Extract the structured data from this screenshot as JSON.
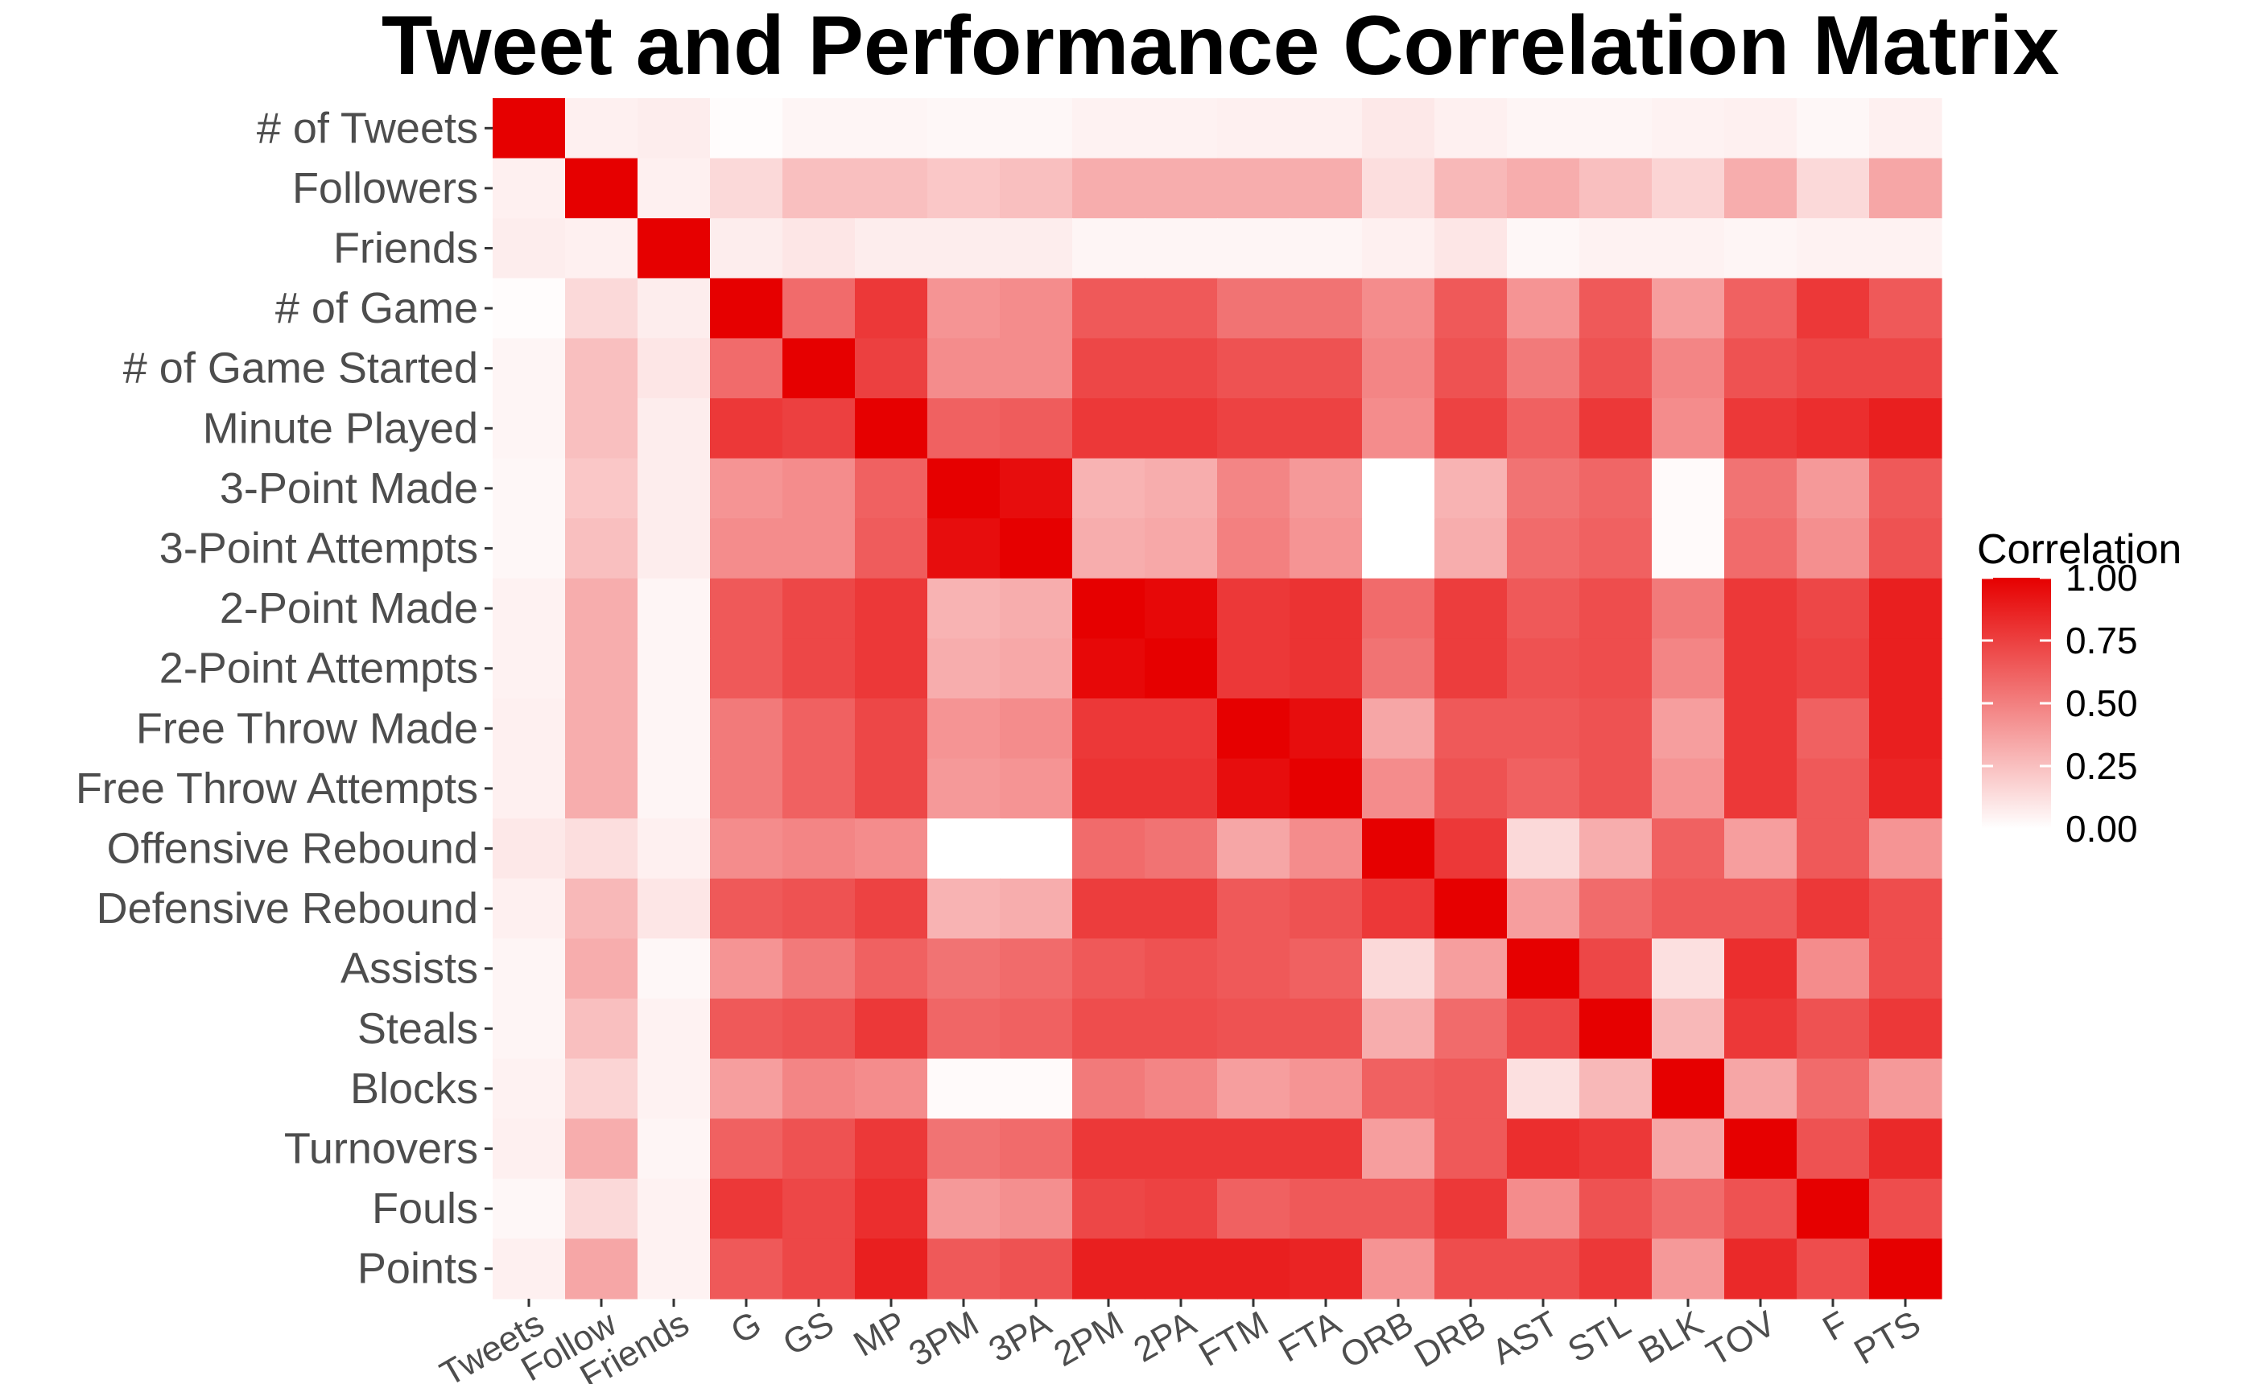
{
  "chart_data": {
    "type": "heatmap",
    "title": "Tweet and Performance Correlation Matrix",
    "xlabel": "",
    "ylabel": "",
    "row_labels": [
      "# of Tweets",
      "Followers",
      "Friends",
      "# of Game",
      "# of Game Started",
      "Minute Played",
      "3-Point Made",
      "3-Point Attempts",
      "2-Point Made",
      "2-Point Attempts",
      "Free Throw Made",
      "Free Throw Attempts",
      "Offensive Rebound",
      "Defensive Rebound",
      "Assists",
      "Steals",
      "Blocks",
      "Turnovers",
      "Fouls",
      "Points"
    ],
    "col_labels": [
      "Tweets",
      "Follow",
      "Friends",
      "G",
      "GS",
      "MP",
      "3PM",
      "3PA",
      "2PM",
      "2PA",
      "FTM",
      "FTA",
      "ORB",
      "DRB",
      "AST",
      "STL",
      "BLK",
      "TOV",
      "F",
      "PTS"
    ],
    "values": [
      [
        1.0,
        0.06,
        0.07,
        0.01,
        0.04,
        0.04,
        0.03,
        0.03,
        0.05,
        0.05,
        0.06,
        0.06,
        0.09,
        0.06,
        0.04,
        0.04,
        0.05,
        0.06,
        0.03,
        0.06
      ],
      [
        0.06,
        1.0,
        0.06,
        0.15,
        0.25,
        0.25,
        0.22,
        0.25,
        0.32,
        0.32,
        0.32,
        0.32,
        0.13,
        0.28,
        0.32,
        0.25,
        0.17,
        0.32,
        0.15,
        0.35
      ],
      [
        0.07,
        0.06,
        1.0,
        0.07,
        0.1,
        0.07,
        0.07,
        0.07,
        0.04,
        0.04,
        0.04,
        0.04,
        0.06,
        0.1,
        0.03,
        0.05,
        0.05,
        0.04,
        0.05,
        0.05
      ],
      [
        0.01,
        0.15,
        0.07,
        1.0,
        0.58,
        0.78,
        0.42,
        0.45,
        0.65,
        0.65,
        0.55,
        0.55,
        0.45,
        0.65,
        0.42,
        0.65,
        0.38,
        0.62,
        0.78,
        0.65
      ],
      [
        0.04,
        0.25,
        0.1,
        0.58,
        1.0,
        0.75,
        0.45,
        0.45,
        0.72,
        0.72,
        0.68,
        0.68,
        0.48,
        0.68,
        0.52,
        0.68,
        0.48,
        0.68,
        0.72,
        0.72
      ],
      [
        0.04,
        0.25,
        0.07,
        0.78,
        0.75,
        1.0,
        0.62,
        0.64,
        0.78,
        0.78,
        0.74,
        0.74,
        0.45,
        0.74,
        0.62,
        0.78,
        0.45,
        0.78,
        0.82,
        0.88
      ],
      [
        0.03,
        0.22,
        0.07,
        0.42,
        0.45,
        0.62,
        1.0,
        0.95,
        0.3,
        0.32,
        0.48,
        0.4,
        0.0,
        0.3,
        0.55,
        0.6,
        0.02,
        0.55,
        0.4,
        0.65
      ],
      [
        0.03,
        0.25,
        0.07,
        0.45,
        0.45,
        0.64,
        0.95,
        1.0,
        0.32,
        0.34,
        0.5,
        0.42,
        0.0,
        0.32,
        0.58,
        0.62,
        0.02,
        0.58,
        0.44,
        0.68
      ],
      [
        0.05,
        0.32,
        0.04,
        0.65,
        0.72,
        0.78,
        0.3,
        0.32,
        1.0,
        0.97,
        0.78,
        0.8,
        0.58,
        0.76,
        0.65,
        0.7,
        0.52,
        0.78,
        0.72,
        0.88
      ],
      [
        0.05,
        0.32,
        0.04,
        0.65,
        0.72,
        0.78,
        0.32,
        0.34,
        0.97,
        1.0,
        0.78,
        0.8,
        0.55,
        0.76,
        0.68,
        0.7,
        0.48,
        0.78,
        0.74,
        0.88
      ],
      [
        0.06,
        0.32,
        0.04,
        0.52,
        0.62,
        0.72,
        0.42,
        0.45,
        0.78,
        0.78,
        1.0,
        0.95,
        0.35,
        0.65,
        0.65,
        0.68,
        0.38,
        0.78,
        0.62,
        0.88
      ],
      [
        0.06,
        0.32,
        0.04,
        0.52,
        0.62,
        0.72,
        0.4,
        0.42,
        0.8,
        0.8,
        0.95,
        1.0,
        0.45,
        0.68,
        0.62,
        0.68,
        0.42,
        0.78,
        0.65,
        0.86
      ],
      [
        0.09,
        0.13,
        0.06,
        0.45,
        0.48,
        0.45,
        0.0,
        0.0,
        0.58,
        0.55,
        0.35,
        0.45,
        1.0,
        0.78,
        0.15,
        0.32,
        0.62,
        0.38,
        0.65,
        0.42
      ],
      [
        0.06,
        0.28,
        0.1,
        0.65,
        0.68,
        0.74,
        0.3,
        0.32,
        0.76,
        0.76,
        0.65,
        0.68,
        0.78,
        1.0,
        0.38,
        0.58,
        0.65,
        0.65,
        0.78,
        0.7
      ],
      [
        0.04,
        0.32,
        0.03,
        0.42,
        0.52,
        0.62,
        0.55,
        0.58,
        0.65,
        0.68,
        0.65,
        0.62,
        0.15,
        0.38,
        1.0,
        0.72,
        0.12,
        0.82,
        0.45,
        0.7
      ],
      [
        0.04,
        0.25,
        0.05,
        0.65,
        0.68,
        0.78,
        0.6,
        0.62,
        0.7,
        0.7,
        0.68,
        0.68,
        0.32,
        0.58,
        0.72,
        1.0,
        0.28,
        0.78,
        0.68,
        0.78
      ],
      [
        0.05,
        0.17,
        0.05,
        0.38,
        0.48,
        0.45,
        0.02,
        0.02,
        0.52,
        0.48,
        0.38,
        0.42,
        0.62,
        0.65,
        0.12,
        0.28,
        1.0,
        0.35,
        0.58,
        0.4
      ],
      [
        0.06,
        0.32,
        0.04,
        0.62,
        0.68,
        0.78,
        0.55,
        0.58,
        0.78,
        0.78,
        0.78,
        0.78,
        0.38,
        0.65,
        0.82,
        0.78,
        0.35,
        1.0,
        0.68,
        0.84
      ],
      [
        0.03,
        0.15,
        0.05,
        0.78,
        0.72,
        0.82,
        0.4,
        0.44,
        0.72,
        0.74,
        0.62,
        0.65,
        0.65,
        0.78,
        0.45,
        0.68,
        0.58,
        0.68,
        1.0,
        0.7
      ],
      [
        0.06,
        0.35,
        0.05,
        0.65,
        0.72,
        0.88,
        0.65,
        0.68,
        0.88,
        0.88,
        0.88,
        0.86,
        0.42,
        0.7,
        0.7,
        0.78,
        0.4,
        0.84,
        0.7,
        1.0
      ]
    ],
    "legend": {
      "title": "Correlation",
      "ticks": [
        "0.00",
        "0.25",
        "0.50",
        "0.75",
        "1.00"
      ],
      "range": [
        0,
        1
      ],
      "placement": "right"
    },
    "colors": {
      "low": "#ffffff",
      "high": "#e60000",
      "panel": "#ebebeb"
    }
  }
}
